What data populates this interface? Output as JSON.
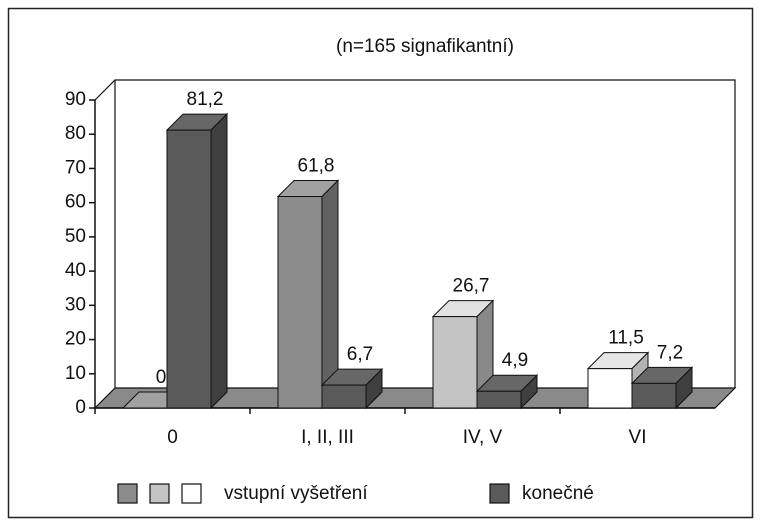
{
  "chart_data": {
    "type": "bar3d",
    "title": "(n=165 signafikantní)",
    "categories": [
      "0",
      "I, II, III",
      "IV, V",
      "VI"
    ],
    "series": [
      {
        "name": "vstupní vyšetření",
        "colors": [
          "#8c8c8c",
          "#8c8c8c",
          "#c4c4c4",
          "#ffffff"
        ],
        "values": [
          0,
          61.8,
          26.7,
          11.5
        ],
        "value_labels": [
          "0",
          "61,8",
          "26,7",
          "11,5"
        ]
      },
      {
        "name": "konečné",
        "color": "#5a5a5a",
        "values": [
          81.2,
          6.7,
          4.9,
          7.2
        ],
        "value_labels": [
          "81,2",
          "6,7",
          "4,9",
          "7,2"
        ]
      }
    ],
    "ylim": [
      0,
      90
    ],
    "yticks": [
      0,
      10,
      20,
      30,
      40,
      50,
      60,
      70,
      80,
      90
    ],
    "grid": false
  }
}
